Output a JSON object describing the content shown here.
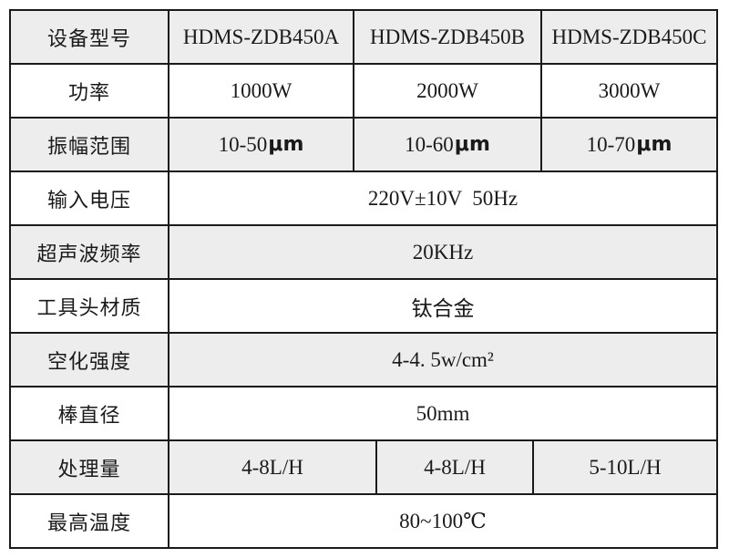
{
  "table": {
    "stripe_color": "#ededed",
    "border_color": "#1a1a1a",
    "rows": [
      {
        "label": "设备型号",
        "values": [
          "HDMS-ZDB450A",
          "HDMS-ZDB450B",
          "HDMS-ZDB450C"
        ]
      },
      {
        "label": "功率",
        "values": [
          "1000W",
          "2000W",
          "3000W"
        ]
      },
      {
        "label": "振幅范围",
        "values": [
          {
            "num": "10-50",
            "unit": "μm"
          },
          {
            "num": "10-60",
            "unit": "μm"
          },
          {
            "num": "10-70",
            "unit": "μm"
          }
        ]
      },
      {
        "label": "输入电压",
        "value": "220V±10V  50Hz"
      },
      {
        "label": "超声波频率",
        "value": "20KHz"
      },
      {
        "label": "工具头材质",
        "value": "钛合金"
      },
      {
        "label": "空化强度",
        "value": "4-4. 5w/cm²"
      },
      {
        "label": "棒直径",
        "value": "50mm"
      },
      {
        "label": "处理量",
        "values": [
          "4-8L/H",
          "4-8L/H",
          "5-10L/H"
        ]
      },
      {
        "label": "最高温度",
        "value": "80~100℃"
      }
    ]
  }
}
